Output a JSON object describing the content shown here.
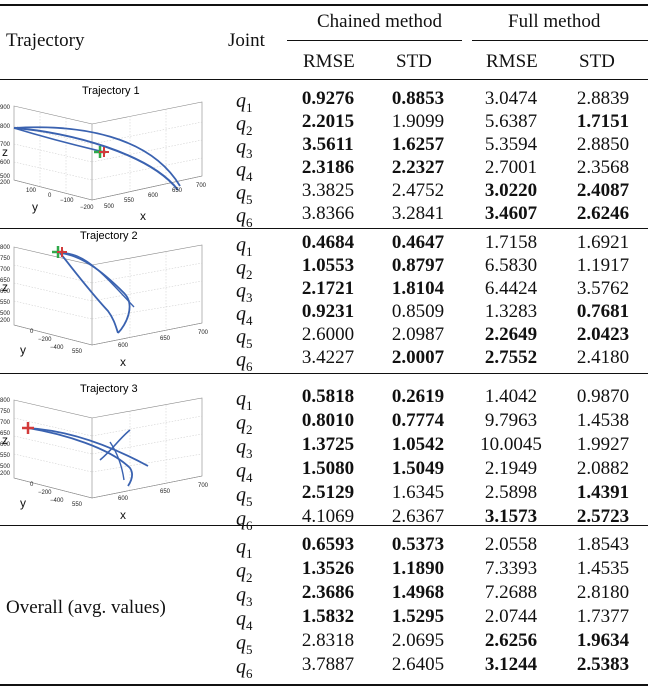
{
  "header": {
    "trajectory": "Trajectory",
    "joint": "Joint",
    "chained": "Chained method",
    "full": "Full method",
    "rmse": "RMSE",
    "std": "STD"
  },
  "joints": [
    "q",
    "q",
    "q",
    "q",
    "q",
    "q"
  ],
  "joint_subs": [
    "1",
    "2",
    "3",
    "4",
    "5",
    "6"
  ],
  "groups": [
    {
      "label": "Trajectory 1",
      "plot": {
        "title": "Trajectory 1",
        "zlabel": "z",
        "ylabel": "y",
        "xlabel": "x",
        "zticks": [
          "900",
          "800",
          "700",
          "600",
          "500",
          "200"
        ],
        "yticks": [
          "100",
          "0",
          "−100",
          "−200"
        ],
        "xticks": [
          "500",
          "550",
          "600",
          "650",
          "700"
        ]
      },
      "rows": [
        {
          "c_rmse": "0.9276",
          "c_std": "0.8853",
          "f_rmse": "3.0474",
          "f_std": "2.8839",
          "bold": [
            true,
            true,
            false,
            false
          ]
        },
        {
          "c_rmse": "2.2015",
          "c_std": "1.9099",
          "f_rmse": "5.6387",
          "f_std": "1.7151",
          "bold": [
            true,
            false,
            false,
            true
          ]
        },
        {
          "c_rmse": "3.5611",
          "c_std": "1.6257",
          "f_rmse": "5.3594",
          "f_std": "2.8850",
          "bold": [
            true,
            true,
            false,
            false
          ]
        },
        {
          "c_rmse": "2.3186",
          "c_std": "2.2327",
          "f_rmse": "2.7001",
          "f_std": "2.3568",
          "bold": [
            true,
            true,
            false,
            false
          ]
        },
        {
          "c_rmse": "3.3825",
          "c_std": "2.4752",
          "f_rmse": "3.0220",
          "f_std": "2.4087",
          "bold": [
            false,
            false,
            true,
            true
          ]
        },
        {
          "c_rmse": "3.8366",
          "c_std": "3.2841",
          "f_rmse": "3.4607",
          "f_std": "2.6246",
          "bold": [
            false,
            false,
            true,
            true
          ]
        }
      ]
    },
    {
      "label": "Trajectory 2",
      "plot": {
        "title": "Trajectory 2",
        "zlabel": "z",
        "ylabel": "y",
        "xlabel": "x",
        "zticks": [
          "800",
          "750",
          "700",
          "650",
          "600",
          "550",
          "500",
          "200"
        ],
        "yticks": [
          "0",
          "−200",
          "−400"
        ],
        "xticks": [
          "550",
          "600",
          "650",
          "700"
        ]
      },
      "rows": [
        {
          "c_rmse": "0.4684",
          "c_std": "0.4647",
          "f_rmse": "1.7158",
          "f_std": "1.6921",
          "bold": [
            true,
            true,
            false,
            false
          ]
        },
        {
          "c_rmse": "1.0553",
          "c_std": "0.8797",
          "f_rmse": "6.5830",
          "f_std": "1.1917",
          "bold": [
            true,
            true,
            false,
            false
          ]
        },
        {
          "c_rmse": "2.1721",
          "c_std": "1.8104",
          "f_rmse": "6.4424",
          "f_std": "3.5762",
          "bold": [
            true,
            true,
            false,
            false
          ]
        },
        {
          "c_rmse": "0.9231",
          "c_std": "0.8509",
          "f_rmse": "1.3283",
          "f_std": "0.7681",
          "bold": [
            true,
            false,
            false,
            true
          ]
        },
        {
          "c_rmse": "2.6000",
          "c_std": "2.0987",
          "f_rmse": "2.2649",
          "f_std": "2.0423",
          "bold": [
            false,
            false,
            true,
            true
          ]
        },
        {
          "c_rmse": "3.4227",
          "c_std": "2.0007",
          "f_rmse": "2.7552",
          "f_std": "2.4180",
          "bold": [
            false,
            true,
            true,
            false
          ]
        }
      ]
    },
    {
      "label": "Trajectory 3",
      "plot": {
        "title": "Trajectory 3",
        "zlabel": "z",
        "ylabel": "y",
        "xlabel": "x",
        "zticks": [
          "800",
          "750",
          "700",
          "650",
          "600",
          "550",
          "500",
          "200"
        ],
        "yticks": [
          "0",
          "−200",
          "−400"
        ],
        "xticks": [
          "550",
          "600",
          "650",
          "700"
        ]
      },
      "rows": [
        {
          "c_rmse": "0.5818",
          "c_std": "0.2619",
          "f_rmse": "1.4042",
          "f_std": "0.9870",
          "bold": [
            true,
            true,
            false,
            false
          ]
        },
        {
          "c_rmse": "0.8010",
          "c_std": "0.7774",
          "f_rmse": "9.7963",
          "f_std": "1.4538",
          "bold": [
            true,
            true,
            false,
            false
          ]
        },
        {
          "c_rmse": "1.3725",
          "c_std": "1.0542",
          "f_rmse": "10.0045",
          "f_std": "1.9927",
          "bold": [
            true,
            true,
            false,
            false
          ]
        },
        {
          "c_rmse": "1.5080",
          "c_std": "1.5049",
          "f_rmse": "2.1949",
          "f_std": "2.0882",
          "bold": [
            true,
            true,
            false,
            false
          ]
        },
        {
          "c_rmse": "2.5129",
          "c_std": "1.6345",
          "f_rmse": "2.5898",
          "f_std": "1.4391",
          "bold": [
            true,
            false,
            false,
            true
          ]
        },
        {
          "c_rmse": "4.1069",
          "c_std": "2.6367",
          "f_rmse": "3.1573",
          "f_std": "2.5723",
          "bold": [
            false,
            false,
            true,
            true
          ]
        }
      ]
    },
    {
      "label": "Overall (avg. values)",
      "rows": [
        {
          "c_rmse": "0.6593",
          "c_std": "0.5373",
          "f_rmse": "2.0558",
          "f_std": "1.8543",
          "bold": [
            true,
            true,
            false,
            false
          ]
        },
        {
          "c_rmse": "1.3526",
          "c_std": "1.1890",
          "f_rmse": "7.3393",
          "f_std": "1.4535",
          "bold": [
            true,
            true,
            false,
            false
          ]
        },
        {
          "c_rmse": "2.3686",
          "c_std": "1.4968",
          "f_rmse": "7.2688",
          "f_std": "2.8180",
          "bold": [
            true,
            true,
            false,
            false
          ]
        },
        {
          "c_rmse": "1.5832",
          "c_std": "1.5295",
          "f_rmse": "2.0744",
          "f_std": "1.7377",
          "bold": [
            true,
            true,
            false,
            false
          ]
        },
        {
          "c_rmse": "2.8318",
          "c_std": "2.0695",
          "f_rmse": "2.6256",
          "f_std": "1.9634",
          "bold": [
            false,
            false,
            true,
            true
          ]
        },
        {
          "c_rmse": "3.7887",
          "c_std": "2.6405",
          "f_rmse": "3.1244",
          "f_std": "2.5383",
          "bold": [
            false,
            false,
            true,
            true
          ]
        }
      ]
    }
  ],
  "colors": {
    "trajectory": "#3a62b0",
    "start_marker": "#2fa84a",
    "end_marker": "#d23b3b",
    "rule": "#111111"
  }
}
